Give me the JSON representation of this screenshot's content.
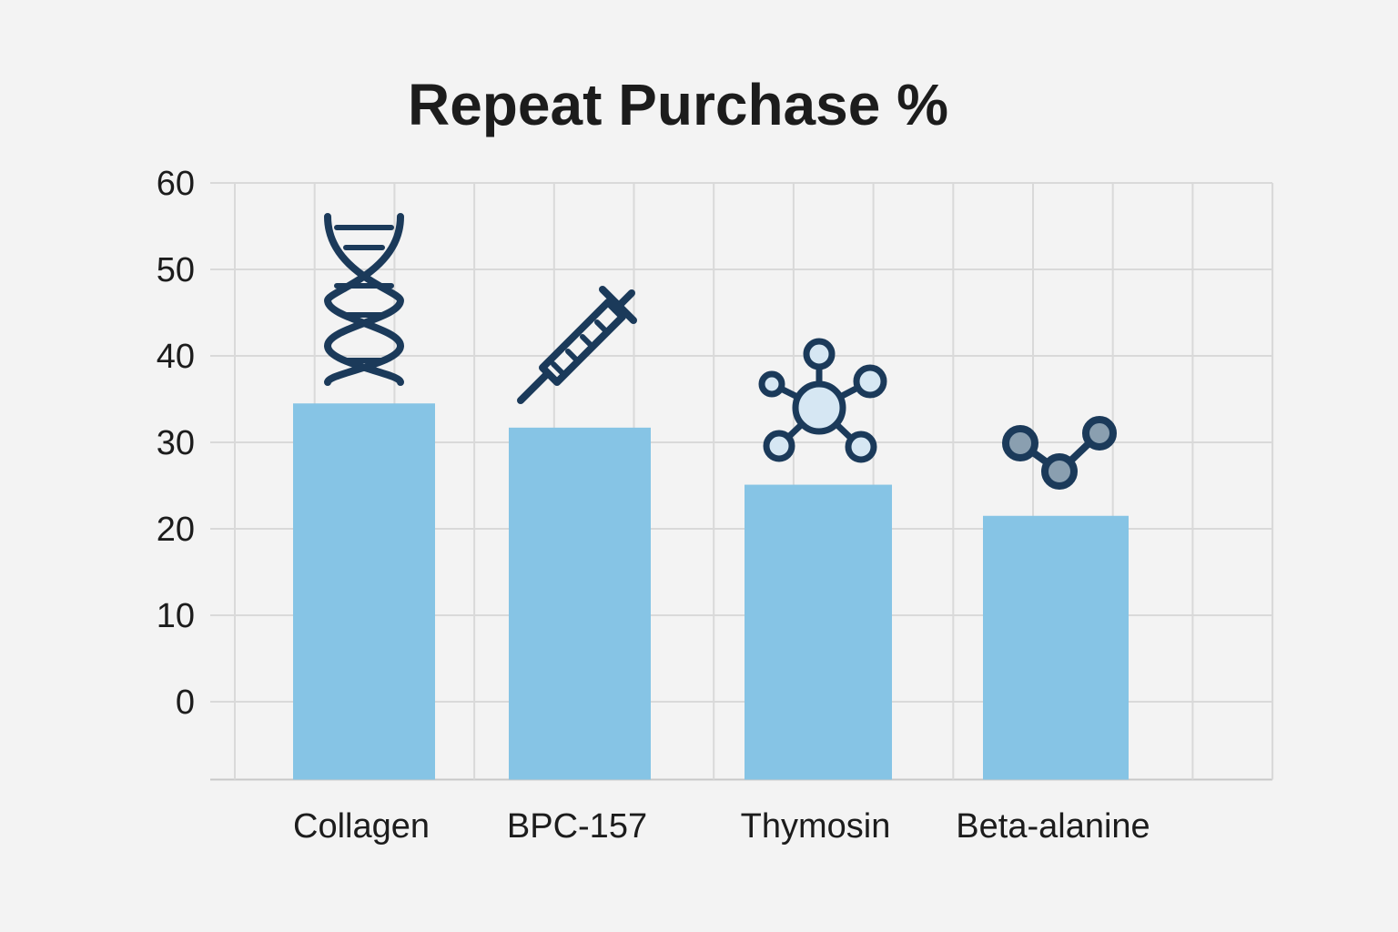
{
  "chart_data": {
    "type": "bar",
    "title": "Repeat Purchase %",
    "xlabel": "",
    "ylabel": "",
    "categories": [
      "Collagen",
      "BPC-157",
      "Thymosin",
      "Beta-alanine"
    ],
    "values": [
      34.5,
      31.7,
      25.1,
      21.5
    ],
    "y_ticks": [
      "0",
      "10",
      "20",
      "30",
      "40",
      "50",
      "60"
    ],
    "ylim": [
      -9,
      60
    ],
    "grid": true,
    "legend": "none",
    "bar_color": "#86c4e5",
    "icon_color": "#1b3a5a",
    "icons": [
      "dna-icon",
      "syringe-icon",
      "molecule-icon",
      "molecule-chain-icon"
    ]
  }
}
